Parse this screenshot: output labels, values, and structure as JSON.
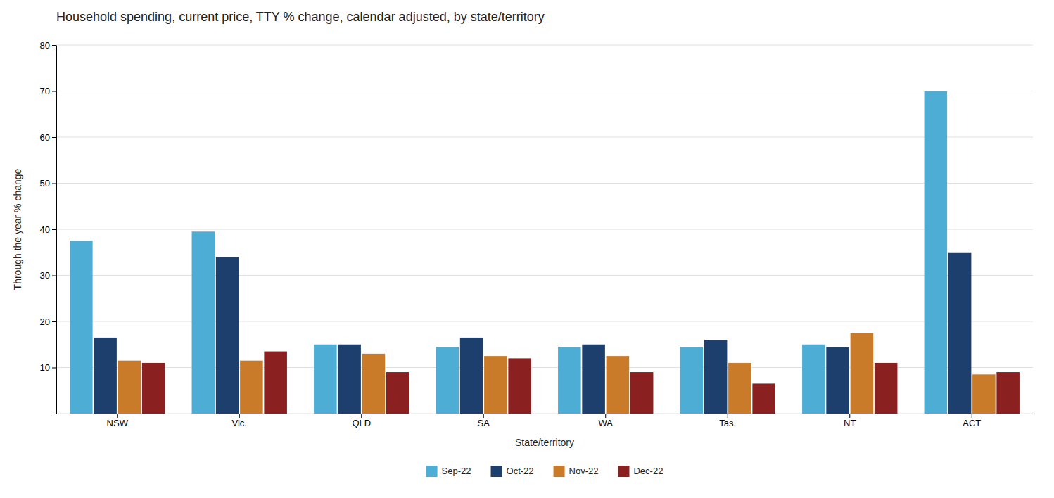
{
  "chart_data": {
    "type": "bar",
    "title": "Household spending, current price, TTY % change, calendar adjusted, by state/territory",
    "xlabel": "State/territory",
    "ylabel": "Through the year % change",
    "categories": [
      "NSW",
      "Vic.",
      "QLD",
      "SA",
      "WA",
      "Tas.",
      "NT",
      "ACT"
    ],
    "series": [
      {
        "name": "Sep-22",
        "color": "#4EADD4",
        "values": [
          37.5,
          39.5,
          15.0,
          14.5,
          14.5,
          14.5,
          15.0,
          70.0
        ]
      },
      {
        "name": "Oct-22",
        "color": "#1C3F6E",
        "values": [
          16.5,
          34.0,
          15.0,
          16.5,
          15.0,
          16.0,
          14.5,
          35.0
        ]
      },
      {
        "name": "Nov-22",
        "color": "#C97B2A",
        "values": [
          11.5,
          11.5,
          13.0,
          12.5,
          12.5,
          11.0,
          17.5,
          8.5
        ]
      },
      {
        "name": "Dec-22",
        "color": "#8B2020",
        "values": [
          11.0,
          13.5,
          9.0,
          12.0,
          9.0,
          6.5,
          11.0,
          9.0
        ]
      }
    ],
    "ylim": [
      0,
      80
    ],
    "yticks": [
      {
        "value": 0,
        "label": null
      },
      10,
      20,
      30,
      40,
      50,
      60,
      70,
      80
    ],
    "grid": true,
    "legend": "bottom"
  }
}
